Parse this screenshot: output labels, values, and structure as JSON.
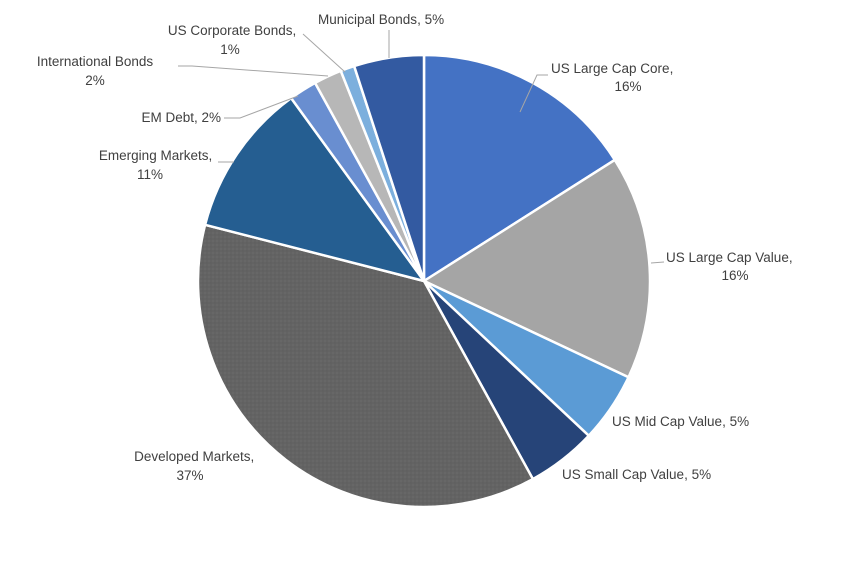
{
  "chart_data": {
    "type": "pie",
    "title": "",
    "start_angle_deg": 0,
    "direction": "clockwise",
    "slices": [
      {
        "name": "US Large Cap Core",
        "value": 16,
        "label": "16%",
        "color": "#4472c4"
      },
      {
        "name": "US Large Cap Value",
        "value": 16,
        "label": "16%",
        "color": "#a5a5a5"
      },
      {
        "name": "US Mid Cap Value",
        "value": 5,
        "label": "5%",
        "color": "#5b9bd5"
      },
      {
        "name": "US Small Cap Value",
        "value": 5,
        "label": "5%",
        "color": "#264478"
      },
      {
        "name": "Developed Markets",
        "value": 37,
        "label": "37%",
        "color": "#636363"
      },
      {
        "name": "Emerging Markets",
        "value": 11,
        "label": "11%",
        "color": "#255e91"
      },
      {
        "name": "EM Debt",
        "value": 2,
        "label": "2%",
        "color": "#698ed0"
      },
      {
        "name": "International Bonds",
        "value": 2,
        "label": "2%",
        "color": "#b7b7b7"
      },
      {
        "name": "US Corporate Bonds",
        "value": 1,
        "label": "1%",
        "color": "#7cafdd"
      },
      {
        "name": "Municipal Bonds",
        "value": 5,
        "label": "5%",
        "color": "#335aa1"
      }
    ]
  }
}
